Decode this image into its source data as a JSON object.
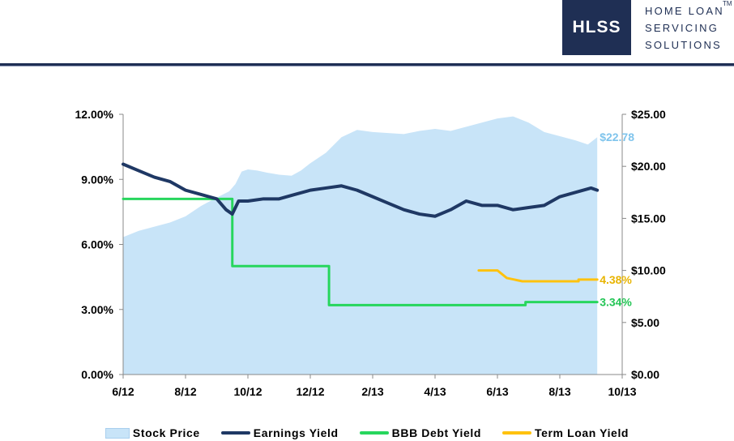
{
  "header": {
    "logo_abbrev": "HLSS",
    "logo_lines": [
      "HOME LOAN",
      "SERVICING",
      "SOLUTIONS"
    ],
    "trademark": "TM",
    "brand_color": "#1f2f54"
  },
  "chart_data": {
    "type": "line",
    "x_ticks": [
      "6/12",
      "8/12",
      "10/12",
      "12/12",
      "2/13",
      "4/13",
      "6/13",
      "8/13",
      "10/13"
    ],
    "y_left": {
      "ticks": [
        "0.00%",
        "3.00%",
        "6.00%",
        "9.00%",
        "12.00%"
      ],
      "ylim": [
        0,
        12
      ]
    },
    "y_right": {
      "ticks": [
        "$0.00",
        "$5.00",
        "$10.00",
        "$15.00",
        "$20.00",
        "$25.00"
      ],
      "ylim": [
        0,
        25
      ]
    },
    "grid": false,
    "legend_position": "bottom",
    "series": [
      {
        "name": "Stock Price",
        "kind": "area",
        "axis": "right",
        "color": "#c8e4f8",
        "end_label": "$22.78",
        "points": [
          [
            0,
            13.2
          ],
          [
            0.5,
            13.8
          ],
          [
            1,
            14.2
          ],
          [
            1.5,
            14.6
          ],
          [
            2,
            15.2
          ],
          [
            2.5,
            16.2
          ],
          [
            3,
            17
          ],
          [
            3.4,
            17.6
          ],
          [
            3.6,
            18.3
          ],
          [
            3.8,
            19.5
          ],
          [
            4,
            19.7
          ],
          [
            4.3,
            19.6
          ],
          [
            4.6,
            19.4
          ],
          [
            5,
            19.2
          ],
          [
            5.4,
            19.1
          ],
          [
            5.7,
            19.6
          ],
          [
            6,
            20.3
          ],
          [
            6.5,
            21.3
          ],
          [
            7,
            22.8
          ],
          [
            7.5,
            23.5
          ],
          [
            8,
            23.3
          ],
          [
            8.5,
            23.2
          ],
          [
            9,
            23.1
          ],
          [
            9.5,
            23.4
          ],
          [
            10,
            23.6
          ],
          [
            10.5,
            23.4
          ],
          [
            11,
            23.8
          ],
          [
            11.5,
            24.2
          ],
          [
            12,
            24.6
          ],
          [
            12.5,
            24.8
          ],
          [
            13,
            24.2
          ],
          [
            13.5,
            23.3
          ],
          [
            14,
            22.9
          ],
          [
            14.5,
            22.5
          ],
          [
            14.9,
            22.1
          ],
          [
            15.2,
            22.8
          ]
        ]
      },
      {
        "name": "Earnings Yield",
        "kind": "line",
        "axis": "left",
        "color": "#1f3864",
        "points": [
          [
            0,
            9.7
          ],
          [
            0.5,
            9.4
          ],
          [
            1,
            9.1
          ],
          [
            1.5,
            8.9
          ],
          [
            2,
            8.5
          ],
          [
            2.5,
            8.3
          ],
          [
            3,
            8.1
          ],
          [
            3.3,
            7.6
          ],
          [
            3.5,
            7.4
          ],
          [
            3.7,
            8.0
          ],
          [
            4,
            8.0
          ],
          [
            4.5,
            8.1
          ],
          [
            5,
            8.1
          ],
          [
            5.5,
            8.3
          ],
          [
            6,
            8.5
          ],
          [
            6.5,
            8.6
          ],
          [
            7,
            8.7
          ],
          [
            7.5,
            8.5
          ],
          [
            8,
            8.2
          ],
          [
            8.5,
            7.9
          ],
          [
            9,
            7.6
          ],
          [
            9.5,
            7.4
          ],
          [
            10,
            7.3
          ],
          [
            10.5,
            7.6
          ],
          [
            11,
            8.0
          ],
          [
            11.5,
            7.8
          ],
          [
            12,
            7.8
          ],
          [
            12.5,
            7.6
          ],
          [
            13,
            7.7
          ],
          [
            13.5,
            7.8
          ],
          [
            14,
            8.2
          ],
          [
            14.5,
            8.4
          ],
          [
            15,
            8.6
          ],
          [
            15.2,
            8.5
          ]
        ]
      },
      {
        "name": "BBB Debt Yield",
        "kind": "line",
        "axis": "left",
        "color": "#27d65d",
        "end_label": "3.34%",
        "points": [
          [
            0,
            8.1
          ],
          [
            3.5,
            8.1
          ],
          [
            3.5,
            5.0
          ],
          [
            6.6,
            5.0
          ],
          [
            6.6,
            3.2
          ],
          [
            12.9,
            3.2
          ],
          [
            12.9,
            3.34
          ],
          [
            15.2,
            3.34
          ]
        ]
      },
      {
        "name": "Term Loan Yield",
        "kind": "line",
        "axis": "left",
        "color": "#ffc20e",
        "end_label": "4.38%",
        "points": [
          [
            11.4,
            4.8
          ],
          [
            12.0,
            4.8
          ],
          [
            12.3,
            4.45
          ],
          [
            12.8,
            4.3
          ],
          [
            14.6,
            4.3
          ],
          [
            14.6,
            4.38
          ],
          [
            15.2,
            4.38
          ]
        ]
      }
    ]
  }
}
